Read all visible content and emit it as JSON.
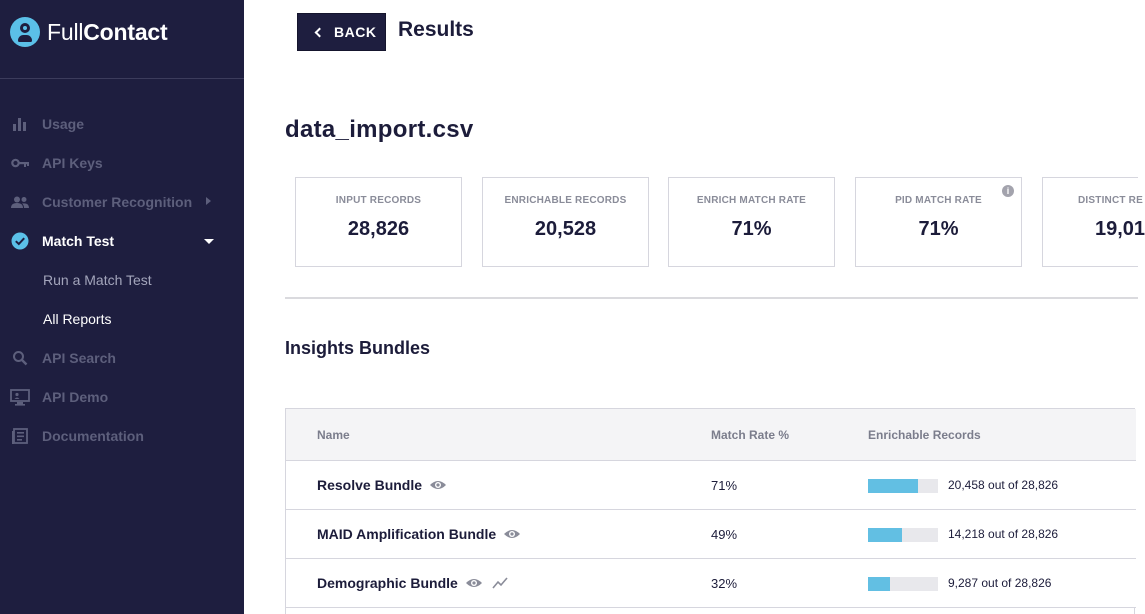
{
  "brand": {
    "name_part1": "Full",
    "name_part2": "Contact"
  },
  "sidebar": {
    "items": [
      {
        "label": "Usage",
        "icon": "bar-chart-icon",
        "active": false
      },
      {
        "label": "API Keys",
        "icon": "key-icon",
        "active": false
      },
      {
        "label": "Customer Recognition",
        "icon": "users-icon",
        "active": false
      },
      {
        "label": "Match Test",
        "icon": "check-circle-icon",
        "active": true
      },
      {
        "label": "API Search",
        "icon": "search-icon",
        "active": false
      },
      {
        "label": "API Demo",
        "icon": "monitor-icon",
        "active": false
      },
      {
        "label": "Documentation",
        "icon": "document-icon",
        "active": false
      }
    ],
    "sub_items": [
      {
        "label": "Run a Match Test",
        "active": false
      },
      {
        "label": "All Reports",
        "active": true
      }
    ]
  },
  "header": {
    "back_label": "BACK",
    "title": "Results"
  },
  "file_name": "data_import.csv",
  "stats": [
    {
      "label": "INPUT RECORDS",
      "value": "28,826"
    },
    {
      "label": "ENRICHABLE RECORDS",
      "value": "20,528"
    },
    {
      "label": "ENRICH MATCH RATE",
      "value": "71%"
    },
    {
      "label": "PID MATCH RATE",
      "value": "71%"
    },
    {
      "label": "DISTINCT RE",
      "value": "19,01"
    }
  ],
  "insights": {
    "title": "Insights Bundles",
    "columns": [
      "Name",
      "Match Rate %",
      "Enrichable Records"
    ],
    "rows": [
      {
        "name": "Resolve Bundle",
        "rate": "71%",
        "fill_fraction": 0.71,
        "count": "20,458 out of 28,826"
      },
      {
        "name": "MAID Amplification Bundle",
        "rate": "49%",
        "fill_fraction": 0.49,
        "count": "14,218 out of 28,826"
      },
      {
        "name": "Demographic Bundle",
        "rate": "32%",
        "fill_fraction": 0.32,
        "count": "9,287 out of 28,826"
      }
    ]
  },
  "colors": {
    "sidebar_bg": "#1e1e3f",
    "accent": "#5bc0e8",
    "bar_fill": "#62bfe3"
  }
}
